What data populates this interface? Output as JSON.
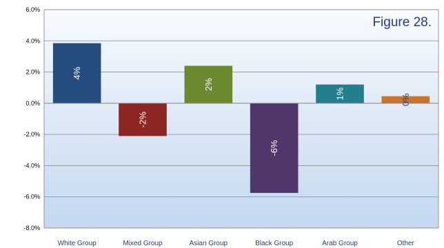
{
  "chart_data": {
    "type": "bar",
    "annotation": "Figure 28.",
    "categories": [
      "White Group",
      "Mixed Group",
      "Asian Group",
      "Black Group",
      "Arab Group",
      "Other"
    ],
    "values": [
      3.85,
      -2.1,
      2.4,
      -5.75,
      1.2,
      0.45
    ],
    "data_labels": [
      "4%",
      "-2%",
      "2%",
      "-6%",
      "1%",
      "0%"
    ],
    "colors": [
      "#254e80",
      "#8b2622",
      "#6b8a30",
      "#50366a",
      "#237e8e",
      "#c8742a"
    ],
    "label_colors": [
      "#ffffff",
      "#ffffff",
      "#ffffff",
      "#ffffff",
      "#ffffff",
      "#1f3e8a"
    ],
    "ylim": [
      -8,
      6
    ],
    "y_ticks": [
      6,
      4,
      2,
      0,
      -2,
      -4,
      -6,
      -8
    ],
    "y_tick_labels": [
      "6.0%",
      "4.0%",
      "2.0%",
      "0.0%",
      "-2.0%",
      "-4.0%",
      "-6.0%",
      "-8.0%"
    ],
    "grid": true,
    "background_gradient": [
      "#f8fbff",
      "#c3d8ef"
    ]
  }
}
